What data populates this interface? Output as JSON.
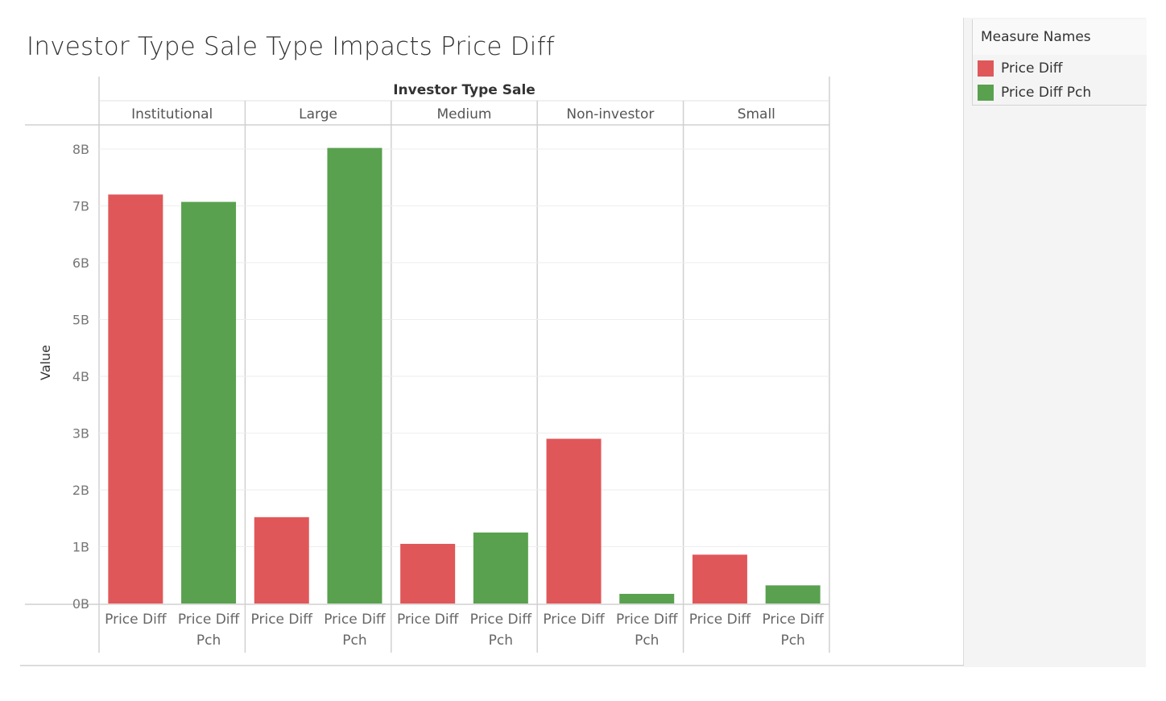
{
  "chart_data": {
    "type": "bar",
    "title": "Investor Type Sale Type Impacts Price Diff",
    "column_header": "Investor Type Sale",
    "ylabel": "Value",
    "ylim": [
      0,
      8
    ],
    "yunit": "B",
    "yticks": [
      0,
      1,
      2,
      3,
      4,
      5,
      6,
      7,
      8
    ],
    "ytick_labels": [
      "0B",
      "1B",
      "2B",
      "3B",
      "4B",
      "5B",
      "6B",
      "7B",
      "8B"
    ],
    "grid": true,
    "groups": [
      "Institutional",
      "Large",
      "Medium",
      "Non-investor",
      "Small"
    ],
    "measure_labels": [
      [
        "Price Diff"
      ],
      [
        "Price Diff",
        "Pch"
      ]
    ],
    "series": [
      {
        "name": "Price Diff",
        "color": "#e05759",
        "values": [
          7.2,
          1.52,
          1.05,
          2.9,
          0.86
        ]
      },
      {
        "name": "Price Diff Pch",
        "color": "#59a14f",
        "values": [
          7.07,
          8.02,
          1.25,
          0.17,
          0.32
        ]
      }
    ],
    "legend": {
      "title": "Measure Names",
      "placement": "right"
    }
  }
}
